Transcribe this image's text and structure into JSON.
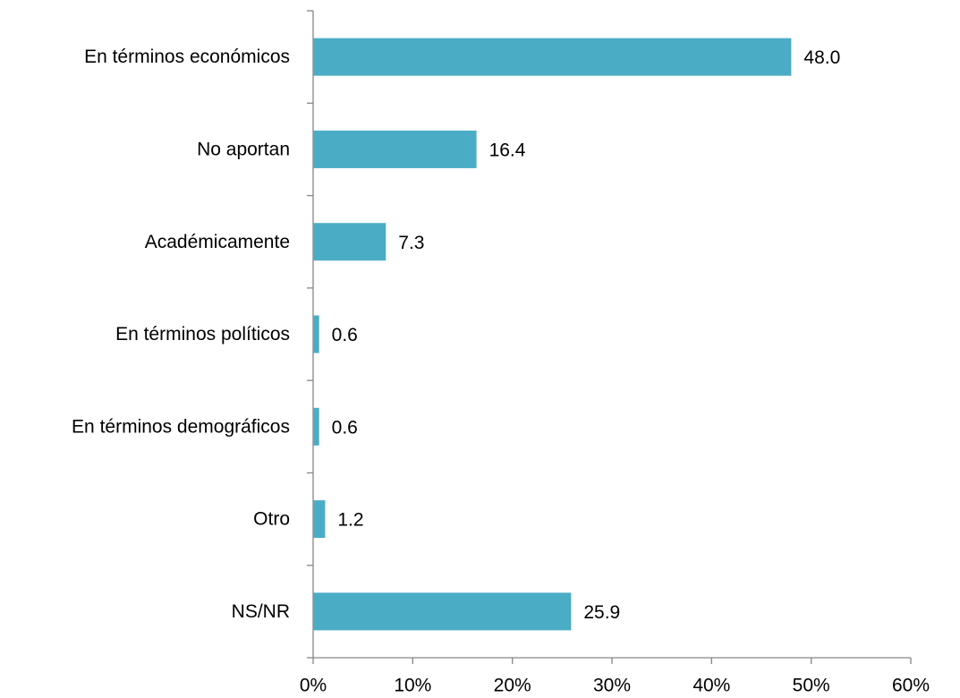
{
  "chart_data": {
    "type": "barh",
    "categories": [
      "En términos económicos",
      "No aportan",
      "Académicamente",
      "En términos políticos",
      "En términos demográficos",
      "Otro",
      "NS/NR"
    ],
    "values": [
      48.0,
      16.4,
      7.3,
      0.6,
      0.6,
      1.2,
      25.9
    ],
    "value_labels": [
      "48.0",
      "16.4",
      "7.3",
      "0.6",
      "0.6",
      "1.2",
      "25.9"
    ],
    "color": "#4bacc6",
    "xlim": [
      0,
      60
    ],
    "xticks": [
      {
        "value": 0,
        "label": "0%"
      },
      {
        "value": 10,
        "label": "10%"
      },
      {
        "value": 20,
        "label": "20%"
      },
      {
        "value": 30,
        "label": "30%"
      },
      {
        "value": 40,
        "label": "40%"
      },
      {
        "value": 50,
        "label": "50%"
      },
      {
        "value": 60,
        "label": "60%"
      }
    ],
    "grid": false
  }
}
